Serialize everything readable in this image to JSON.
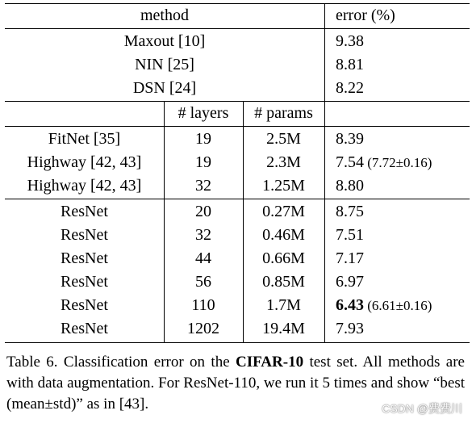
{
  "table": {
    "header": {
      "method": "method",
      "error": "error (%)"
    },
    "section1": [
      {
        "method": "Maxout [10]",
        "error": "9.38"
      },
      {
        "method": "NIN [25]",
        "error": "8.81"
      },
      {
        "method": "DSN [24]",
        "error": "8.22"
      }
    ],
    "subheader": {
      "layers": "# layers",
      "params": "# params"
    },
    "section2": [
      {
        "method": "FitNet [35]",
        "layers": "19",
        "params": "2.5M",
        "error": "8.39",
        "extra": ""
      },
      {
        "method": "Highway [42, 43]",
        "layers": "19",
        "params": "2.3M",
        "error": "7.54",
        "extra": "(7.72±0.16)"
      },
      {
        "method": "Highway [42, 43]",
        "layers": "32",
        "params": "1.25M",
        "error": "8.80",
        "extra": ""
      }
    ],
    "section3": [
      {
        "method": "ResNet",
        "layers": "20",
        "params": "0.27M",
        "error": "8.75",
        "extra": ""
      },
      {
        "method": "ResNet",
        "layers": "32",
        "params": "0.46M",
        "error": "7.51",
        "extra": ""
      },
      {
        "method": "ResNet",
        "layers": "44",
        "params": "0.66M",
        "error": "7.17",
        "extra": ""
      },
      {
        "method": "ResNet",
        "layers": "56",
        "params": "0.85M",
        "error": "6.97",
        "extra": ""
      },
      {
        "method": "ResNet",
        "layers": "110",
        "params": "1.7M",
        "error": "6.43",
        "extra": "(6.61±0.16)",
        "bold": true
      },
      {
        "method": "ResNet",
        "layers": "1202",
        "params": "19.4M",
        "error": "7.93",
        "extra": ""
      }
    ]
  },
  "caption": {
    "prefix": "Table 6. Classification error on the ",
    "strong": "CIFAR-10",
    "suffix": " test set. All methods are with data augmentation. For ResNet-110, we run it 5 times and show “best (mean±std)” as in [43]."
  },
  "watermark": "CSDN @费费川"
}
